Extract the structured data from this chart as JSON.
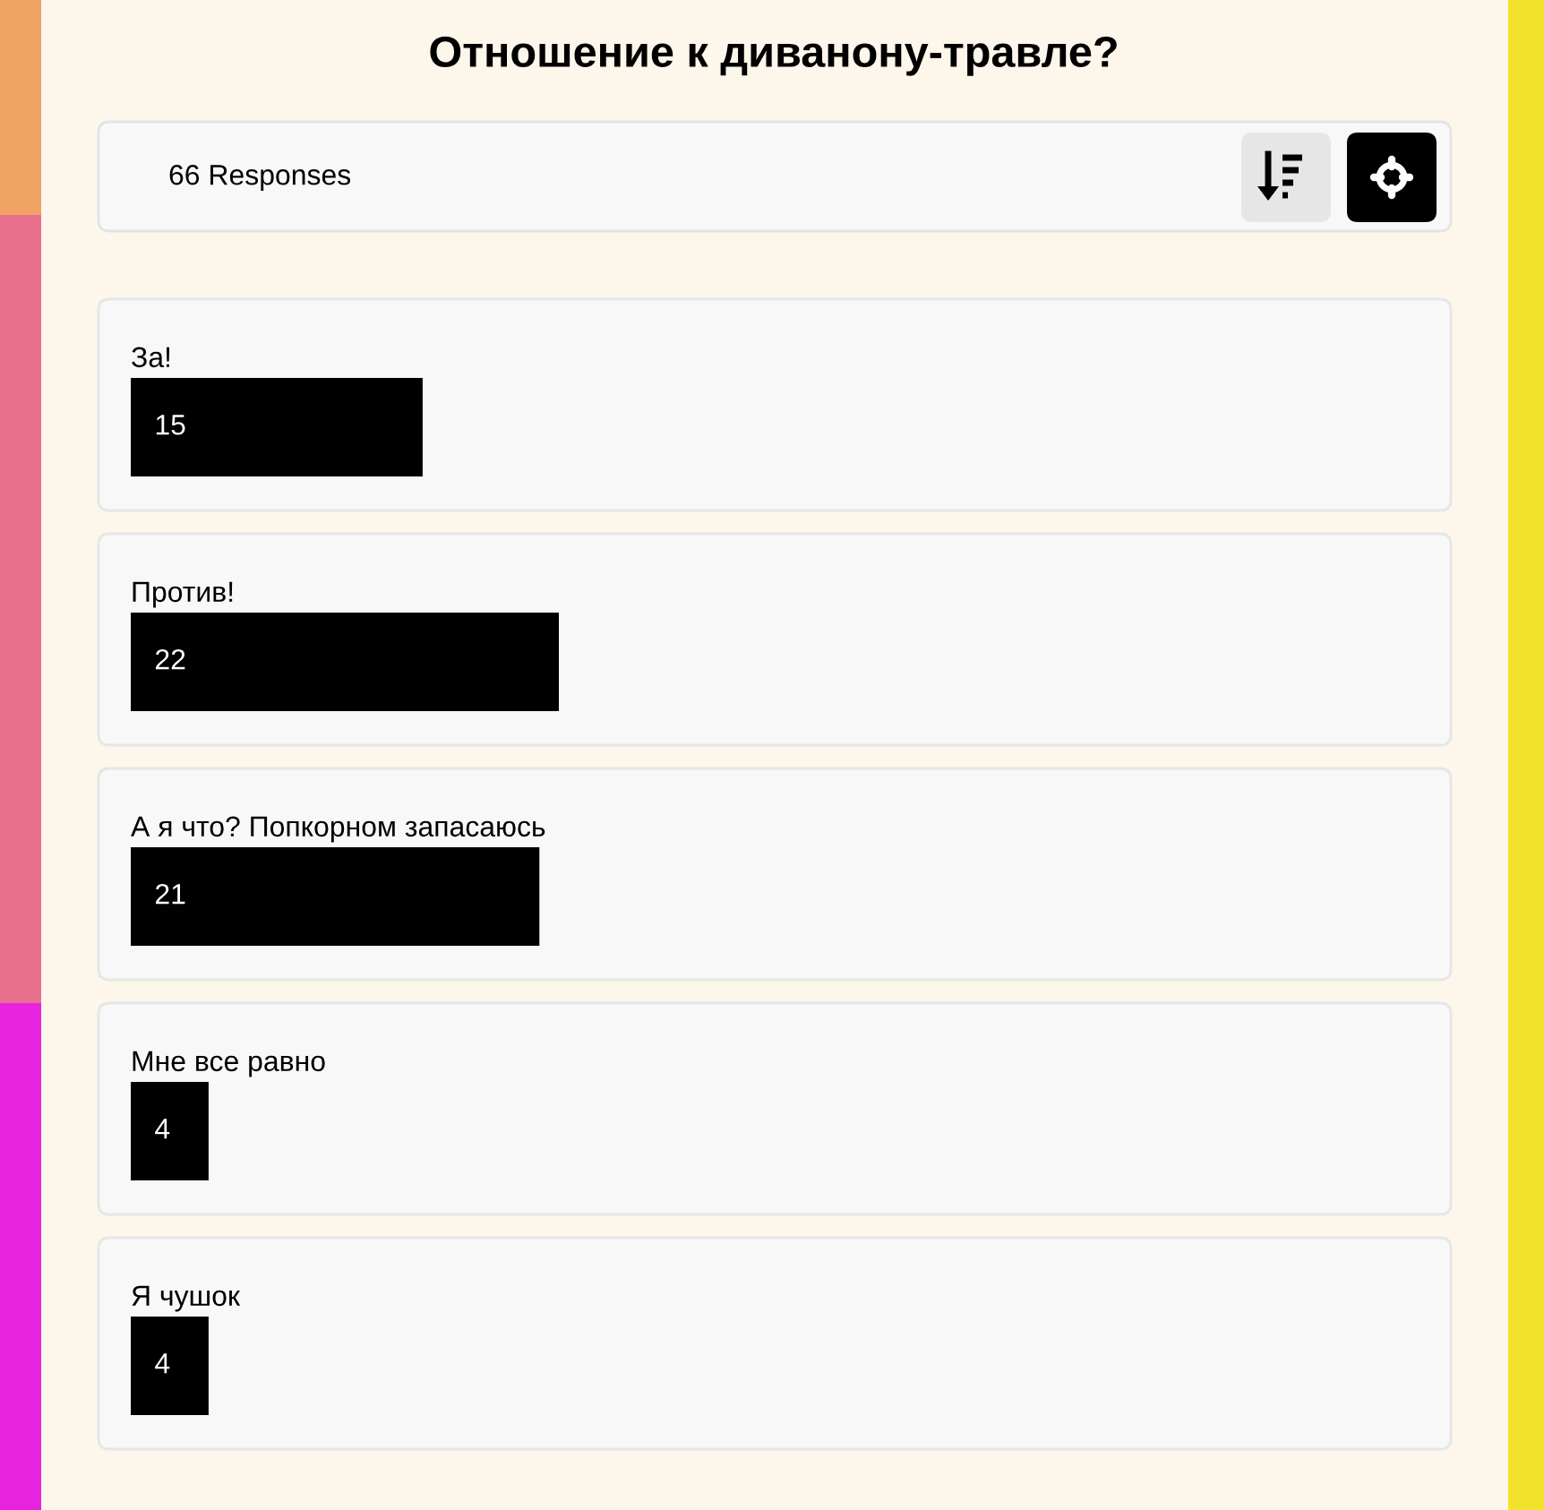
{
  "chart_data": {
    "type": "bar",
    "orientation": "horizontal",
    "title": "Отношение к диванону-травле?",
    "annotations": [
      "66 Responses"
    ],
    "categories": [
      "За!",
      "Против!",
      "А я что? Попкорном запасаюсь",
      "Мне все равно",
      "Я чушок"
    ],
    "values": [
      15,
      22,
      21,
      4,
      4
    ],
    "color": "#000000",
    "data_labels": true
  }
}
